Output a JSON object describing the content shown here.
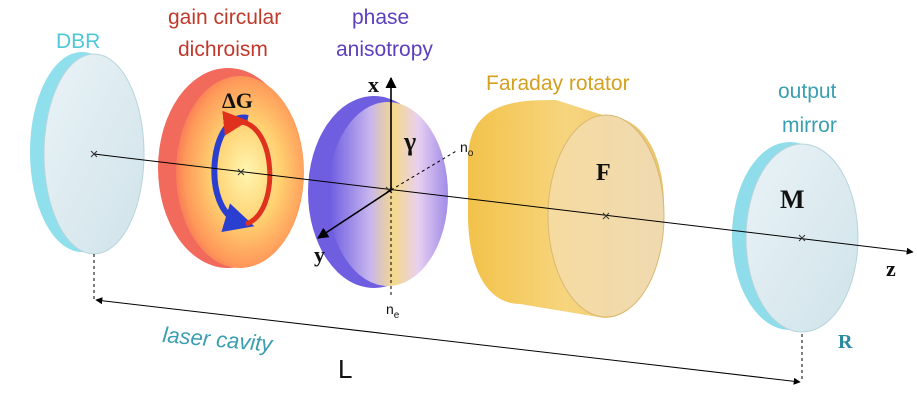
{
  "labels": {
    "dbr": "DBR",
    "gain_line1": "gain circular",
    "gain_line2": "dichroism",
    "phase_line1": "phase",
    "phase_line2": "anisotropy",
    "faraday": "Faraday rotator",
    "output_line1": "output",
    "output_line2": "mirror",
    "delta_g": "ΔG",
    "gamma": "γ",
    "f": "F",
    "m": "M",
    "r": "R",
    "x_axis": "x",
    "y_axis": "y",
    "z_axis": "z",
    "n_o_base": "n",
    "n_o_sub": "o",
    "n_e_base": "n",
    "n_e_sub": "e",
    "laser_cavity": "laser cavity",
    "length": "L"
  },
  "colors": {
    "dbr": "#4fc8d8",
    "gain": "#c0392b",
    "phase": "#5b3fc0",
    "faraday": "#d4a020",
    "output": "#3a9fb0",
    "r_label": "#2a8aa0"
  }
}
